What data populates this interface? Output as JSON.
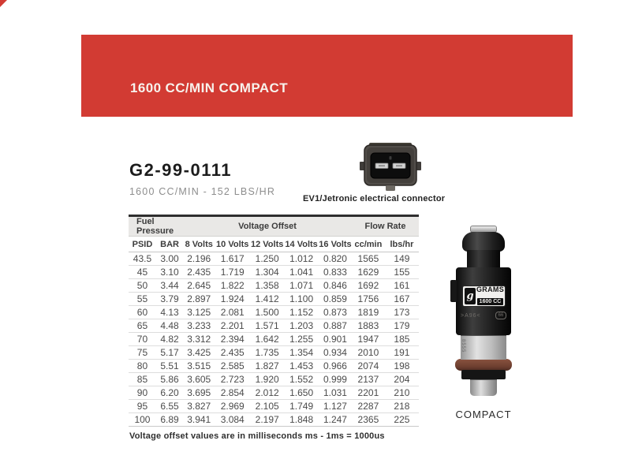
{
  "banner": {
    "title": "1600 CC/MIN COMPACT",
    "bg_color": "#d23b33"
  },
  "product": {
    "part_number": "G2-99-0111",
    "subtitle": "1600 CC/MIN - 152 LBS/HR"
  },
  "connector": {
    "caption": "EV1/Jetronic electrical connector",
    "icon": "ev1-connector-icon"
  },
  "table": {
    "group_headers": [
      {
        "label": "Fuel Pressure",
        "span": 2
      },
      {
        "label": "Voltage Offset",
        "span": 5
      },
      {
        "label": "Flow Rate",
        "span": 2
      }
    ],
    "columns": [
      "PSID",
      "BAR",
      "8 Volts",
      "10 Volts",
      "12 Volts",
      "14 Volts",
      "16 Volts",
      "cc/min",
      "lbs/hr"
    ],
    "rows": [
      [
        "43.5",
        "3.00",
        "2.196",
        "1.617",
        "1.250",
        "1.012",
        "0.820",
        "1565",
        "149"
      ],
      [
        "45",
        "3.10",
        "2.435",
        "1.719",
        "1.304",
        "1.041",
        "0.833",
        "1629",
        "155"
      ],
      [
        "50",
        "3.44",
        "2.645",
        "1.822",
        "1.358",
        "1.071",
        "0.846",
        "1692",
        "161"
      ],
      [
        "55",
        "3.79",
        "2.897",
        "1.924",
        "1.412",
        "1.100",
        "0.859",
        "1756",
        "167"
      ],
      [
        "60",
        "4.13",
        "3.125",
        "2.081",
        "1.500",
        "1.152",
        "0.873",
        "1819",
        "173"
      ],
      [
        "65",
        "4.48",
        "3.233",
        "2.201",
        "1.571",
        "1.203",
        "0.887",
        "1883",
        "179"
      ],
      [
        "70",
        "4.82",
        "3.312",
        "2.394",
        "1.642",
        "1.255",
        "0.901",
        "1947",
        "185"
      ],
      [
        "75",
        "5.17",
        "3.425",
        "2.435",
        "1.735",
        "1.354",
        "0.934",
        "2010",
        "191"
      ],
      [
        "80",
        "5.51",
        "3.515",
        "2.585",
        "1.827",
        "1.453",
        "0.966",
        "2074",
        "198"
      ],
      [
        "85",
        "5.86",
        "3.605",
        "2.723",
        "1.920",
        "1.552",
        "0.999",
        "2137",
        "204"
      ],
      [
        "90",
        "6.20",
        "3.695",
        "2.854",
        "2.012",
        "1.650",
        "1.031",
        "2201",
        "210"
      ],
      [
        "95",
        "6.55",
        "3.827",
        "2.969",
        "2.105",
        "1.749",
        "1.127",
        "2287",
        "218"
      ],
      [
        "100",
        "6.89",
        "3.941",
        "3.084",
        "2.197",
        "1.848",
        "1.247",
        "2365",
        "225"
      ]
    ]
  },
  "footnote": "Voltage offset values are in milliseconds ms - 1ms = 1000us",
  "injector": {
    "logo_glyph": "g",
    "brand": "GRAMS",
    "cc_label": "1600 CC",
    "marking_left": ">A96<",
    "marking_right": "66",
    "etch_text": "8555",
    "caption": "COMPACT"
  }
}
